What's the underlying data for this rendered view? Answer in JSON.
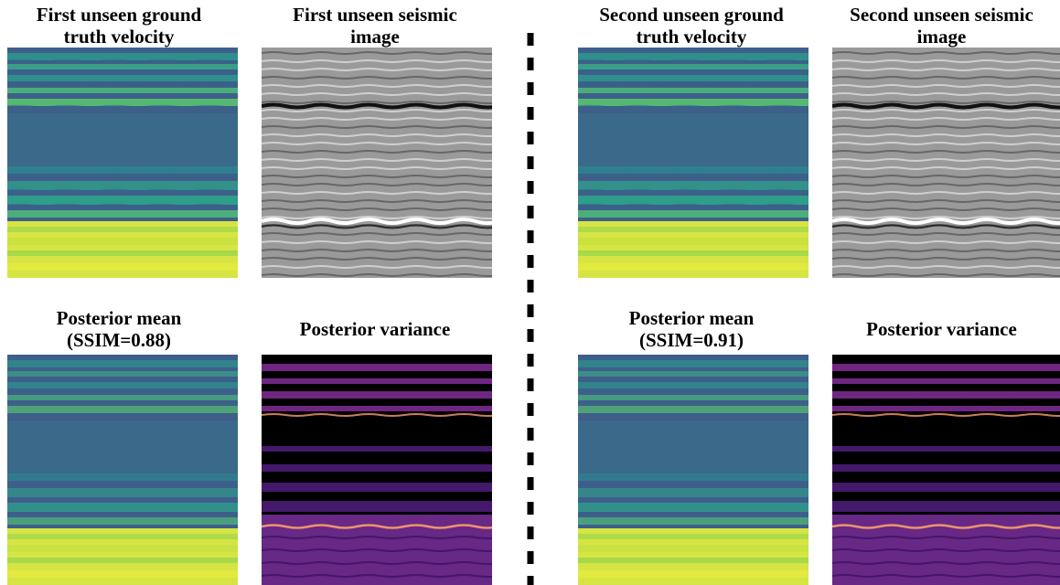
{
  "figure": {
    "left_group": {
      "titles": {
        "gt": "First unseen ground\ntruth velocity",
        "seismic": "First unseen seismic\nimage",
        "mean": "Posterior mean\n(SSIM=0.88)",
        "variance": "Posterior variance"
      }
    },
    "right_group": {
      "titles": {
        "gt": "Second unseen ground\ntruth velocity",
        "seismic": "Second unseen seismic\nimage",
        "mean": "Posterior mean\n(SSIM=0.91)",
        "variance": "Posterior variance"
      }
    },
    "colors": {
      "viridis_dark": "#3e5f8a",
      "viridis_mid": "#2e9e8a",
      "viridis_light": "#d7e544",
      "magma_dark": "#000000",
      "magma_mid": "#7b2a8f",
      "magma_light": "#fb9f6a",
      "divider": "#000000"
    }
  }
}
